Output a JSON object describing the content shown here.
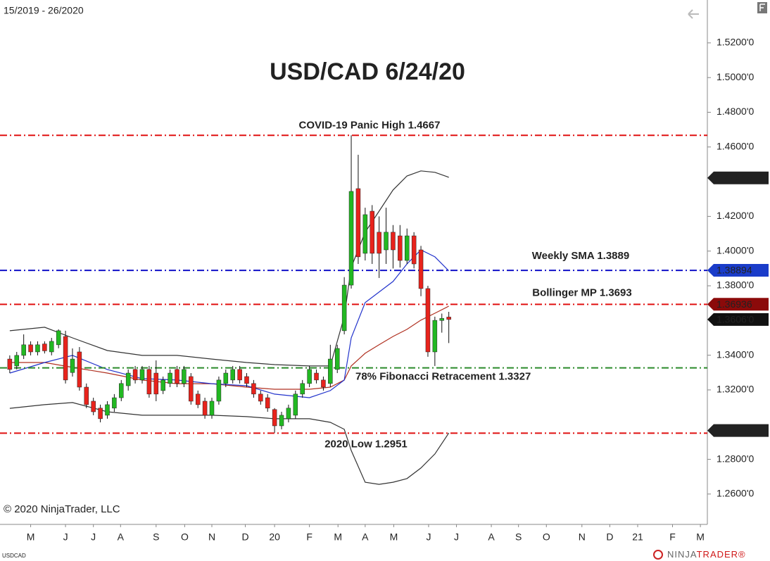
{
  "chart_data": {
    "type": "candlestick",
    "date_range": "15/2019 - 26/2020",
    "title": "USD/CAD 6/24/20",
    "symbol": "USDCAD",
    "copyright": "© 2020 NinjaTrader, LLC",
    "logo": [
      "NINJA",
      "TRADER®"
    ],
    "up_color": "#22b822",
    "down_color": "#e8231c",
    "x": [
      0,
      1,
      2,
      3,
      4,
      5,
      6,
      7,
      8,
      9,
      10,
      11,
      12,
      13,
      14,
      15,
      16,
      17,
      18,
      19,
      20,
      21,
      22,
      23,
      24,
      25,
      26,
      27,
      28,
      29,
      30,
      31,
      32,
      33,
      34,
      35,
      36,
      37,
      38,
      39,
      40,
      41,
      42,
      43,
      44,
      45,
      46,
      47,
      48,
      49,
      50,
      51,
      52,
      53,
      54,
      55,
      56,
      57,
      58,
      59,
      60,
      61,
      62,
      63
    ],
    "open": [
      1.3378,
      1.3338,
      1.3399,
      1.346,
      1.3419,
      1.3465,
      1.3419,
      1.346,
      1.3508,
      1.33,
      1.3419,
      1.3216,
      1.3135,
      1.3095,
      1.3054,
      1.3095,
      1.3155,
      1.3224,
      1.3318,
      1.3257,
      1.3318,
      1.3297,
      1.3196,
      1.3237,
      1.3318,
      1.3237,
      1.3277,
      1.3176,
      1.3135,
      1.3054,
      1.3135,
      1.3237,
      1.3257,
      1.3318,
      1.3277,
      1.3237,
      1.3176,
      1.3155,
      1.3087,
      1.2993,
      1.3034,
      1.3054,
      1.3176,
      1.3237,
      1.3297,
      1.3257,
      1.3237,
      1.3318,
      1.3541,
      1.3804,
      1.436,
      1.3987,
      1.423,
      1.4109,
      1.4007,
      1.4109,
      1.4088,
      1.3946,
      1.4088,
      1.4007,
      1.3784,
      1.3419,
      1.36,
      1.362
    ],
    "high": [
      1.3399,
      1.3419,
      1.352,
      1.348,
      1.348,
      1.348,
      1.35,
      1.3549,
      1.3541,
      1.3439,
      1.3447,
      1.3237,
      1.3155,
      1.3115,
      1.3135,
      1.3176,
      1.3257,
      1.3318,
      1.3338,
      1.3338,
      1.3338,
      1.337,
      1.3277,
      1.3318,
      1.3338,
      1.3338,
      1.3297,
      1.3196,
      1.3155,
      1.3155,
      1.3277,
      1.3318,
      1.3338,
      1.3338,
      1.3297,
      1.3257,
      1.3196,
      1.3176,
      1.3095,
      1.3074,
      1.3115,
      1.3196,
      1.3257,
      1.3338,
      1.3318,
      1.3277,
      1.346,
      1.346,
      1.385,
      1.4667,
      1.4555,
      1.425,
      1.4265,
      1.42,
      1.425,
      1.415,
      1.415,
      1.413,
      1.4109,
      1.403,
      1.38,
      1.3622,
      1.364,
      1.365
    ],
    "low": [
      1.3297,
      1.3318,
      1.3378,
      1.3399,
      1.3399,
      1.341,
      1.3399,
      1.344,
      1.3237,
      1.3277,
      1.3196,
      1.3095,
      1.3054,
      1.3013,
      1.3034,
      1.3074,
      1.3135,
      1.3196,
      1.3237,
      1.3237,
      1.3155,
      1.3135,
      1.3176,
      1.3216,
      1.3216,
      1.3216,
      1.3115,
      1.3095,
      1.3034,
      1.3034,
      1.3115,
      1.3216,
      1.3237,
      1.3237,
      1.3216,
      1.3155,
      1.3115,
      1.3074,
      1.2953,
      1.2973,
      1.3013,
      1.3034,
      1.3155,
      1.3216,
      1.3237,
      1.3196,
      1.3216,
      1.3297,
      1.352,
      1.3784,
      1.3926,
      1.3946,
      1.3926,
      1.3845,
      1.3926,
      1.39,
      1.3905,
      1.3926,
      1.39,
      1.374,
      1.3391,
      1.3338,
      1.353,
      1.347
    ],
    "close": [
      1.3318,
      1.3399,
      1.346,
      1.3419,
      1.346,
      1.3425,
      1.348,
      1.3541,
      1.3257,
      1.3378,
      1.3216,
      1.3115,
      1.3074,
      1.3034,
      1.3115,
      1.3155,
      1.3237,
      1.3297,
      1.3257,
      1.3318,
      1.3176,
      1.3176,
      1.3257,
      1.3297,
      1.3237,
      1.3318,
      1.3135,
      1.3115,
      1.3054,
      1.3135,
      1.3257,
      1.3297,
      1.3318,
      1.3257,
      1.3237,
      1.3176,
      1.3135,
      1.3095,
      1.2993,
      1.3054,
      1.3095,
      1.3176,
      1.3237,
      1.3318,
      1.3257,
      1.3216,
      1.3378,
      1.3439,
      1.3804,
      1.4344,
      1.3967,
      1.421,
      1.3987,
      1.3987,
      1.4109,
      1.4007,
      1.3946,
      1.4088,
      1.3926,
      1.3784,
      1.3419,
      1.3601,
      1.3612,
      1.3606
    ],
    "indicators": {
      "x": [
        0,
        5,
        9,
        14,
        19,
        24,
        29,
        34,
        38,
        43,
        46,
        48,
        49,
        51,
        53,
        55,
        57,
        59,
        61,
        63
      ],
      "series": [
        {
          "color": "#333333",
          "values": [
            1.3541,
            1.3561,
            1.35,
            1.3427,
            1.3399,
            1.3399,
            1.3378,
            1.3358,
            1.3346,
            1.3338,
            1.3338,
            1.3622,
            1.3906,
            1.4109,
            1.423,
            1.4352,
            1.4433,
            1.4462,
            1.4454,
            1.4425
          ]
        },
        {
          "color": "#333333",
          "values": [
            1.3094,
            1.3115,
            1.3127,
            1.3074,
            1.3054,
            1.3054,
            1.3054,
            1.3046,
            1.3034,
            1.3034,
            1.3013,
            1.2973,
            1.2851,
            1.2668,
            1.2656,
            1.2668,
            1.2689,
            1.275,
            1.2831,
            1.2952
          ]
        },
        {
          "color": "#b03020",
          "values": [
            1.3358,
            1.3358,
            1.333,
            1.3297,
            1.3257,
            1.3236,
            1.3236,
            1.3216,
            1.3204,
            1.3204,
            1.3216,
            1.3257,
            1.3338,
            1.3411,
            1.346,
            1.3508,
            1.3549,
            1.3602,
            1.3642,
            1.3683
          ]
        },
        {
          "color": "#2233cc",
          "values": [
            1.3297,
            1.3358,
            1.3399,
            1.3318,
            1.3265,
            1.3257,
            1.3236,
            1.3224,
            1.3176,
            1.3155,
            1.3196,
            1.3257,
            1.35,
            1.3703,
            1.3764,
            1.3825,
            1.3926,
            1.4007,
            1.3967,
            1.3886
          ]
        }
      ]
    },
    "levels": [
      {
        "label": "COVID-19 Panic High 1.4667",
        "value": 1.4667,
        "color": "#e01010"
      },
      {
        "label": "Weekly SMA 1.3889",
        "value": 1.3889,
        "color": "#1010c8"
      },
      {
        "label": "Bollinger MP 1.3693",
        "value": 1.3693,
        "color": "#e01010"
      },
      {
        "label": "78% Fibonacci Retracement 1.3327",
        "value": 1.3327,
        "color": "#2a8a2a"
      },
      {
        "label": "2020 Low 1.2951",
        "value": 1.2951,
        "color": "#e01010"
      }
    ],
    "price_markers": [
      {
        "value": 1.44215,
        "color": "#222222"
      },
      {
        "value": 1.38894,
        "color": "#1a3cc9"
      },
      {
        "value": 1.36936,
        "color": "#8b0a0a"
      },
      {
        "value": 1.3606,
        "label": "1.3606'0",
        "color": "#111111"
      },
      {
        "value": 1.29658,
        "color": "#222222"
      }
    ],
    "xlim": [
      -1.4,
      100.1
    ],
    "xticks": [
      {
        "value": 3.0,
        "label": "M"
      },
      {
        "value": 8.0,
        "label": "J"
      },
      {
        "value": 12.0,
        "label": "J"
      },
      {
        "value": 15.9,
        "label": "A"
      },
      {
        "value": 21.0,
        "label": "S"
      },
      {
        "value": 25.1,
        "label": "O"
      },
      {
        "value": 29.0,
        "label": "N"
      },
      {
        "value": 33.8,
        "label": "D"
      },
      {
        "value": 38.0,
        "label": "20"
      },
      {
        "value": 43.0,
        "label": "F"
      },
      {
        "value": 47.1,
        "label": "M"
      },
      {
        "value": 51.0,
        "label": "A"
      },
      {
        "value": 55.1,
        "label": "M"
      },
      {
        "value": 60.1,
        "label": "J"
      },
      {
        "value": 64.1,
        "label": "J"
      },
      {
        "value": 69.1,
        "label": "A"
      },
      {
        "value": 73.0,
        "label": "S"
      },
      {
        "value": 77.0,
        "label": "O"
      },
      {
        "value": 82.1,
        "label": "N"
      },
      {
        "value": 86.1,
        "label": "D"
      },
      {
        "value": 90.1,
        "label": "21"
      },
      {
        "value": 95.1,
        "label": "F"
      },
      {
        "value": 99.1,
        "label": "M"
      }
    ],
    "ylim": [
      1.2425,
      1.5447
    ],
    "yticks": [
      {
        "value": 1.52,
        "label": "1.5200'0"
      },
      {
        "value": 1.5,
        "label": "1.5000'0"
      },
      {
        "value": 1.48,
        "label": "1.4800'0"
      },
      {
        "value": 1.46,
        "label": "1.4600'0"
      },
      {
        "value": 1.42,
        "label": "1.4200'0"
      },
      {
        "value": 1.4,
        "label": "1.4000'0"
      },
      {
        "value": 1.38,
        "label": "1.3800'0"
      },
      {
        "value": 1.34,
        "label": "1.3400'0"
      },
      {
        "value": 1.32,
        "label": "1.3200'0"
      },
      {
        "value": 1.28,
        "label": "1.2800'0"
      },
      {
        "value": 1.26,
        "label": "1.2600'0"
      }
    ]
  }
}
